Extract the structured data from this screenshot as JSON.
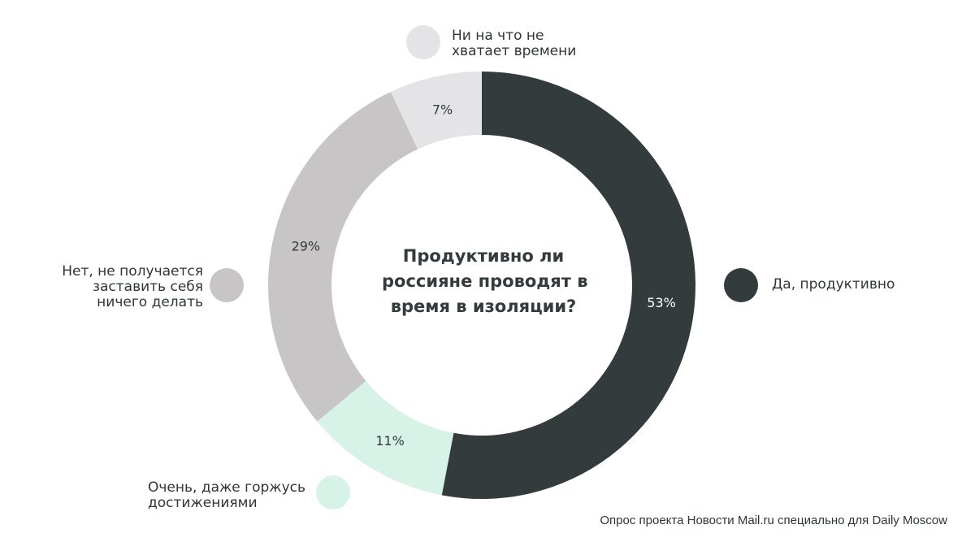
{
  "chart_data": {
    "type": "pie",
    "title": [
      "Продуктивно ли",
      "россияне проводят в",
      "время в изоляции?"
    ],
    "slices": [
      {
        "label": [
          "Да, продуктивно"
        ],
        "value": 53,
        "value_label": "53%",
        "color": "#333b3d",
        "text_color": "#ffffff"
      },
      {
        "label": [
          "Очень, даже горжусь",
          "достижениями"
        ],
        "value": 11,
        "value_label": "11%",
        "color": "#d7f3e8",
        "text_color": "#333b3d"
      },
      {
        "label": [
          "Нет, не получается",
          "заставить себя",
          "ничего делать"
        ],
        "value": 29,
        "value_label": "29%",
        "color": "#c8c5c6",
        "text_color": "#333b3d"
      },
      {
        "label": [
          "Ни на что не",
          "хватает времени"
        ],
        "value": 7,
        "value_label": "7%",
        "color": "#e4e3e5",
        "text_color": "#333b3d"
      }
    ],
    "start": "12 o'clock",
    "direction": "clockwise",
    "legend_position": "around"
  },
  "footer": {
    "source": "Опрос проекта Новости Mail.ru специально для Daily Moscow"
  }
}
